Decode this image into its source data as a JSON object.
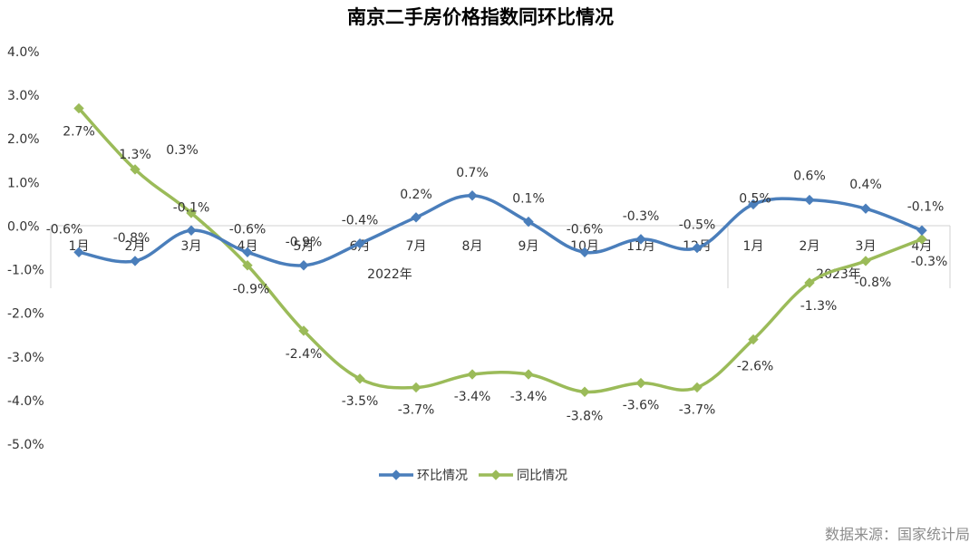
{
  "chart_data": {
    "type": "line",
    "title": "南京二手房价格指数同环比情况",
    "source": "数据来源：国家统计局",
    "y_ticks": [
      "4.0%",
      "3.0%",
      "2.0%",
      "1.0%",
      "0.0%",
      "-1.0%",
      "-2.0%",
      "-3.0%",
      "-4.0%",
      "-5.0%"
    ],
    "ylim": [
      -5,
      4
    ],
    "categories": [
      "1月",
      "2月",
      "3月",
      "4月",
      "5月",
      "6月",
      "7月",
      "8月",
      "9月",
      "10月",
      "11月",
      "12月",
      "1月",
      "2月",
      "3月",
      "4月"
    ],
    "year_groups": [
      {
        "label": "2022年",
        "start": 0,
        "end": 11
      },
      {
        "label": "2023年",
        "start": 12,
        "end": 15
      }
    ],
    "series": [
      {
        "name": "环比情况",
        "color": "#4a7ebb",
        "marker": "diamond",
        "values": [
          -0.6,
          -0.8,
          -0.1,
          -0.6,
          -0.9,
          -0.4,
          0.2,
          0.7,
          0.1,
          -0.6,
          -0.3,
          -0.5,
          0.5,
          0.6,
          0.4,
          -0.1
        ],
        "labels": [
          "-0.6%",
          "-0.8%",
          "-0.1%",
          "-0.6%",
          "-0.9%",
          "-0.4%",
          "0.2%",
          "0.7%",
          "0.1%",
          "-0.6%",
          "-0.3%",
          "-0.5%",
          "0.5%",
          "0.6%",
          "0.4%",
          "-0.1%"
        ]
      },
      {
        "name": "同比情况",
        "color": "#9bbb59",
        "marker": "diamond",
        "values": [
          2.7,
          1.3,
          0.3,
          -0.9,
          -2.4,
          -3.5,
          -3.7,
          -3.4,
          -3.4,
          -3.8,
          -3.6,
          -3.7,
          -2.6,
          -1.3,
          -0.8,
          -0.3
        ],
        "labels": [
          "2.7%",
          "1.3%",
          "0.3%",
          "-0.9%",
          "-2.4%",
          "-3.5%",
          "-3.7%",
          "-3.4%",
          "-3.4%",
          "-3.8%",
          "-3.6%",
          "-3.7%",
          "-2.6%",
          "-1.3%",
          "-0.8%",
          "-0.3%"
        ]
      }
    ],
    "legend_position": "bottom"
  }
}
